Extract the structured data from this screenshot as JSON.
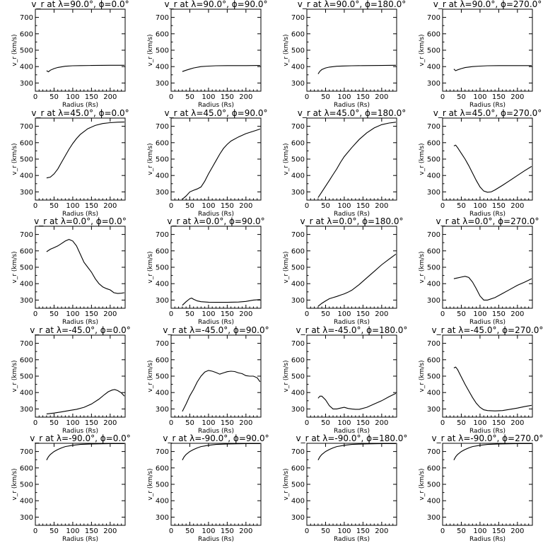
{
  "chart_data": [
    {
      "type": "line",
      "title": "v_r at λ=90.0°, ϕ=0.0°",
      "xlabel": "Radius (Rs)",
      "ylabel": "v_r (km/s)",
      "xlim": [
        0,
        240
      ],
      "ylim": [
        250,
        750
      ],
      "xticks": [
        "0",
        "50",
        "100",
        "150",
        "200"
      ],
      "yticks": [
        "300",
        "400",
        "500",
        "600",
        "700"
      ],
      "x": [
        30,
        35,
        40,
        50,
        60,
        80,
        100,
        120,
        150,
        200,
        238
      ],
      "y": [
        375,
        368,
        378,
        388,
        395,
        402,
        405,
        406,
        407,
        408,
        408
      ]
    },
    {
      "type": "line",
      "title": "v_r at λ=90.0°, ϕ=90.0°",
      "xlabel": "Radius (Rs)",
      "ylabel": "v_r (km/s)",
      "xlim": [
        0,
        240
      ],
      "ylim": [
        250,
        750
      ],
      "xticks": [
        "0",
        "50",
        "100",
        "150",
        "200"
      ],
      "yticks": [
        "300",
        "400",
        "500",
        "600",
        "700"
      ],
      "x": [
        30,
        40,
        50,
        60,
        80,
        100,
        120,
        150,
        200,
        238
      ],
      "y": [
        370,
        378,
        385,
        392,
        400,
        403,
        405,
        406,
        406,
        407
      ]
    },
    {
      "type": "line",
      "title": "v_r at λ=90.0°, ϕ=180.0°",
      "xlabel": "Radius (Rs)",
      "ylabel": "v_r (km/s)",
      "xlim": [
        0,
        240
      ],
      "ylim": [
        250,
        750
      ],
      "xticks": [
        "0",
        "50",
        "100",
        "150",
        "200"
      ],
      "yticks": [
        "300",
        "400",
        "500",
        "600",
        "700"
      ],
      "x": [
        30,
        35,
        40,
        50,
        60,
        80,
        100,
        120,
        150,
        200,
        238
      ],
      "y": [
        355,
        372,
        382,
        392,
        397,
        402,
        404,
        405,
        406,
        407,
        408
      ]
    },
    {
      "type": "line",
      "title": "v_r at λ=90.0°, ϕ=270.0°",
      "xlabel": "Radius (Rs)",
      "ylabel": "v_r (km/s)",
      "xlim": [
        0,
        240
      ],
      "ylim": [
        250,
        750
      ],
      "xticks": [
        "0",
        "50",
        "100",
        "150",
        "200"
      ],
      "yticks": [
        "300",
        "400",
        "500",
        "600",
        "700"
      ],
      "x": [
        30,
        35,
        40,
        50,
        60,
        80,
        100,
        120,
        150,
        200,
        238
      ],
      "y": [
        385,
        375,
        380,
        388,
        394,
        400,
        403,
        405,
        406,
        406,
        406
      ]
    },
    {
      "type": "line",
      "title": "v_r at λ=45.0°, ϕ=0.0°",
      "xlabel": "Radius (Rs)",
      "ylabel": "v_r (km/s)",
      "xlim": [
        0,
        240
      ],
      "ylim": [
        250,
        750
      ],
      "xticks": [
        "0",
        "50",
        "100",
        "150",
        "200"
      ],
      "yticks": [
        "300",
        "400",
        "500",
        "600",
        "700"
      ],
      "x": [
        30,
        40,
        50,
        60,
        70,
        80,
        90,
        100,
        110,
        120,
        140,
        160,
        180,
        200,
        220,
        238
      ],
      "y": [
        385,
        390,
        410,
        440,
        480,
        520,
        560,
        595,
        625,
        650,
        685,
        705,
        717,
        722,
        725,
        726
      ]
    },
    {
      "type": "line",
      "title": "v_r at λ=45.0°, ϕ=90.0°",
      "xlabel": "Radius (Rs)",
      "ylabel": "v_r (km/s)",
      "xlim": [
        0,
        240
      ],
      "ylim": [
        250,
        750
      ],
      "xticks": [
        "0",
        "50",
        "100",
        "150",
        "200"
      ],
      "yticks": [
        "300",
        "400",
        "500",
        "600",
        "700"
      ],
      "x": [
        30,
        40,
        50,
        60,
        70,
        80,
        90,
        100,
        110,
        120,
        130,
        140,
        150,
        160,
        180,
        200,
        220,
        238
      ],
      "y": [
        255,
        275,
        300,
        310,
        318,
        330,
        365,
        410,
        450,
        490,
        530,
        565,
        590,
        610,
        635,
        655,
        670,
        683
      ]
    },
    {
      "type": "line",
      "title": "v_r at λ=45.0°, ϕ=180.0°",
      "xlabel": "Radius (Rs)",
      "ylabel": "v_r (km/s)",
      "xlim": [
        0,
        240
      ],
      "ylim": [
        250,
        750
      ],
      "xticks": [
        "0",
        "50",
        "100",
        "150",
        "200"
      ],
      "yticks": [
        "300",
        "400",
        "500",
        "600",
        "700"
      ],
      "x": [
        30,
        40,
        50,
        60,
        70,
        80,
        90,
        100,
        120,
        140,
        160,
        180,
        200,
        220,
        238
      ],
      "y": [
        265,
        300,
        335,
        370,
        405,
        440,
        480,
        515,
        570,
        620,
        660,
        690,
        710,
        720,
        725
      ]
    },
    {
      "type": "line",
      "title": "v_r at λ=45.0°, ϕ=270.0°",
      "xlabel": "Radius (Rs)",
      "ylabel": "v_r (km/s)",
      "xlim": [
        0,
        240
      ],
      "ylim": [
        250,
        750
      ],
      "xticks": [
        "0",
        "50",
        "100",
        "150",
        "200"
      ],
      "yticks": [
        "300",
        "400",
        "500",
        "600",
        "700"
      ],
      "x": [
        30,
        35,
        40,
        50,
        60,
        70,
        80,
        90,
        100,
        110,
        120,
        130,
        140,
        160,
        180,
        200,
        220,
        238
      ],
      "y": [
        580,
        585,
        570,
        535,
        500,
        460,
        415,
        370,
        330,
        305,
        298,
        300,
        312,
        340,
        370,
        400,
        430,
        455
      ]
    },
    {
      "type": "line",
      "title": "v_r at λ=0.0°, ϕ=0.0°",
      "xlabel": "Radius (Rs)",
      "ylabel": "v_r (km/s)",
      "xlim": [
        0,
        240
      ],
      "ylim": [
        250,
        750
      ],
      "xticks": [
        "0",
        "50",
        "100",
        "150",
        "200"
      ],
      "yticks": [
        "300",
        "400",
        "500",
        "600",
        "700"
      ],
      "x": [
        30,
        40,
        50,
        60,
        70,
        80,
        90,
        100,
        110,
        120,
        130,
        140,
        150,
        160,
        170,
        180,
        190,
        200,
        210,
        220,
        230,
        238
      ],
      "y": [
        595,
        610,
        620,
        630,
        645,
        660,
        670,
        660,
        630,
        580,
        530,
        500,
        470,
        430,
        400,
        380,
        370,
        362,
        345,
        340,
        342,
        345
      ]
    },
    {
      "type": "line",
      "title": "v_r at λ=0.0°, ϕ=90.0°",
      "xlabel": "Radius (Rs)",
      "ylabel": "v_r (km/s)",
      "xlim": [
        0,
        240
      ],
      "ylim": [
        250,
        750
      ],
      "xticks": [
        "0",
        "50",
        "100",
        "150",
        "200"
      ],
      "yticks": [
        "300",
        "400",
        "500",
        "600",
        "700"
      ],
      "x": [
        30,
        40,
        50,
        55,
        60,
        70,
        80,
        100,
        120,
        150,
        180,
        200,
        220,
        238
      ],
      "y": [
        268,
        290,
        308,
        312,
        305,
        295,
        290,
        287,
        286,
        286,
        288,
        292,
        300,
        303
      ]
    },
    {
      "type": "line",
      "title": "v_r at λ=0.0°, ϕ=180.0°",
      "xlabel": "Radius (Rs)",
      "ylabel": "v_r (km/s)",
      "xlim": [
        0,
        240
      ],
      "ylim": [
        250,
        750
      ],
      "xticks": [
        "0",
        "50",
        "100",
        "150",
        "200"
      ],
      "yticks": [
        "300",
        "400",
        "500",
        "600",
        "700"
      ],
      "x": [
        30,
        40,
        50,
        60,
        70,
        80,
        90,
        100,
        110,
        120,
        140,
        160,
        180,
        200,
        220,
        238
      ],
      "y": [
        262,
        280,
        295,
        308,
        315,
        322,
        330,
        338,
        348,
        360,
        395,
        435,
        475,
        515,
        550,
        580
      ]
    },
    {
      "type": "line",
      "title": "v_r at λ=0.0°, ϕ=270.0°",
      "xlabel": "Radius (Rs)",
      "ylabel": "v_r (km/s)",
      "xlim": [
        0,
        240
      ],
      "ylim": [
        250,
        750
      ],
      "xticks": [
        "0",
        "50",
        "100",
        "150",
        "200"
      ],
      "yticks": [
        "300",
        "400",
        "500",
        "600",
        "700"
      ],
      "x": [
        30,
        40,
        50,
        60,
        70,
        80,
        90,
        100,
        110,
        120,
        140,
        160,
        180,
        200,
        220,
        238
      ],
      "y": [
        430,
        435,
        440,
        445,
        438,
        410,
        370,
        325,
        300,
        300,
        315,
        340,
        365,
        390,
        410,
        430
      ]
    },
    {
      "type": "line",
      "title": "v_r at λ=-45.0°, ϕ=0.0°",
      "xlabel": "Radius (Rs)",
      "ylabel": "v_r (km/s)",
      "xlim": [
        0,
        240
      ],
      "ylim": [
        250,
        750
      ],
      "xticks": [
        "0",
        "50",
        "100",
        "150",
        "200"
      ],
      "yticks": [
        "300",
        "400",
        "500",
        "600",
        "700"
      ],
      "x": [
        30,
        50,
        70,
        90,
        110,
        130,
        150,
        170,
        185,
        195,
        205,
        212,
        220,
        230,
        238
      ],
      "y": [
        270,
        275,
        282,
        290,
        298,
        310,
        330,
        360,
        388,
        405,
        415,
        418,
        412,
        398,
        378
      ]
    },
    {
      "type": "line",
      "title": "v_r at λ=-45.0°, ϕ=90.0°",
      "xlabel": "Radius (Rs)",
      "ylabel": "v_r (km/s)",
      "xlim": [
        0,
        240
      ],
      "ylim": [
        250,
        750
      ],
      "xticks": [
        "0",
        "50",
        "100",
        "150",
        "200"
      ],
      "yticks": [
        "300",
        "400",
        "500",
        "600",
        "700"
      ],
      "x": [
        30,
        40,
        50,
        60,
        70,
        80,
        90,
        100,
        110,
        120,
        130,
        140,
        150,
        160,
        170,
        180,
        190,
        200,
        210,
        220,
        230,
        238
      ],
      "y": [
        285,
        330,
        380,
        420,
        465,
        500,
        525,
        535,
        530,
        522,
        512,
        520,
        527,
        530,
        528,
        520,
        515,
        503,
        500,
        500,
        490,
        465
      ]
    },
    {
      "type": "line",
      "title": "v_r at λ=-45.0°, ϕ=180.0°",
      "xlabel": "Radius (Rs)",
      "ylabel": "v_r (km/s)",
      "xlim": [
        0,
        240
      ],
      "ylim": [
        250,
        750
      ],
      "xticks": [
        "0",
        "50",
        "100",
        "150",
        "200"
      ],
      "yticks": [
        "300",
        "400",
        "500",
        "600",
        "700"
      ],
      "x": [
        30,
        35,
        40,
        50,
        60,
        70,
        80,
        90,
        100,
        110,
        120,
        130,
        140,
        160,
        180,
        200,
        220,
        238
      ],
      "y": [
        365,
        378,
        378,
        355,
        320,
        300,
        300,
        305,
        310,
        303,
        300,
        298,
        298,
        310,
        330,
        350,
        375,
        395
      ]
    },
    {
      "type": "line",
      "title": "v_r at λ=-45.0°, ϕ=270.0°",
      "xlabel": "Radius (Rs)",
      "ylabel": "v_r (km/s)",
      "xlim": [
        0,
        240
      ],
      "ylim": [
        250,
        750
      ],
      "xticks": [
        "0",
        "50",
        "100",
        "150",
        "200"
      ],
      "yticks": [
        "300",
        "400",
        "500",
        "600",
        "700"
      ],
      "x": [
        30,
        35,
        40,
        50,
        60,
        70,
        80,
        90,
        100,
        110,
        120,
        140,
        160,
        180,
        200,
        220,
        238
      ],
      "y": [
        550,
        555,
        540,
        495,
        450,
        410,
        370,
        335,
        310,
        295,
        290,
        288,
        290,
        298,
        305,
        315,
        322
      ]
    },
    {
      "type": "line",
      "title": "v_r at λ=-90.0°, ϕ=0.0°",
      "xlabel": "Radius (Rs)",
      "ylabel": "v_r (km/s)",
      "xlim": [
        0,
        240
      ],
      "ylim": [
        250,
        750
      ],
      "xticks": [
        "0",
        "50",
        "100",
        "150",
        "200"
      ],
      "yticks": [
        "300",
        "400",
        "500",
        "600",
        "700"
      ],
      "x": [
        30,
        35,
        40,
        50,
        60,
        70,
        80,
        100,
        120,
        150,
        200,
        238
      ],
      "y": [
        648,
        668,
        682,
        700,
        712,
        722,
        730,
        738,
        743,
        746,
        748,
        748
      ]
    },
    {
      "type": "line",
      "title": "v_r at λ=-90.0°, ϕ=90.0°",
      "xlabel": "Radius (Rs)",
      "ylabel": "v_r (km/s)",
      "xlim": [
        0,
        240
      ],
      "ylim": [
        250,
        750
      ],
      "xticks": [
        "0",
        "50",
        "100",
        "150",
        "200"
      ],
      "yticks": [
        "300",
        "400",
        "500",
        "600",
        "700"
      ],
      "x": [
        30,
        35,
        40,
        50,
        60,
        70,
        80,
        100,
        120,
        150,
        200,
        238
      ],
      "y": [
        648,
        668,
        682,
        700,
        712,
        722,
        730,
        738,
        743,
        746,
        748,
        748
      ]
    },
    {
      "type": "line",
      "title": "v_r at λ=-90.0°, ϕ=180.0°",
      "xlabel": "Radius (Rs)",
      "ylabel": "v_r (km/s)",
      "xlim": [
        0,
        240
      ],
      "ylim": [
        250,
        750
      ],
      "xticks": [
        "0",
        "50",
        "100",
        "150",
        "200"
      ],
      "yticks": [
        "300",
        "400",
        "500",
        "600",
        "700"
      ],
      "x": [
        30,
        35,
        40,
        50,
        60,
        70,
        80,
        100,
        120,
        150,
        200,
        238
      ],
      "y": [
        648,
        668,
        682,
        700,
        712,
        722,
        730,
        738,
        743,
        746,
        748,
        748
      ]
    },
    {
      "type": "line",
      "title": "v_r at λ=-90.0°, ϕ=270.0°",
      "xlabel": "Radius (Rs)",
      "ylabel": "v_r (km/s)",
      "xlim": [
        0,
        240
      ],
      "ylim": [
        250,
        750
      ],
      "xticks": [
        "0",
        "50",
        "100",
        "150",
        "200"
      ],
      "yticks": [
        "300",
        "400",
        "500",
        "600",
        "700"
      ],
      "x": [
        30,
        35,
        40,
        50,
        60,
        70,
        80,
        100,
        120,
        150,
        200,
        238
      ],
      "y": [
        648,
        668,
        682,
        700,
        712,
        722,
        730,
        738,
        743,
        746,
        748,
        748
      ]
    }
  ]
}
